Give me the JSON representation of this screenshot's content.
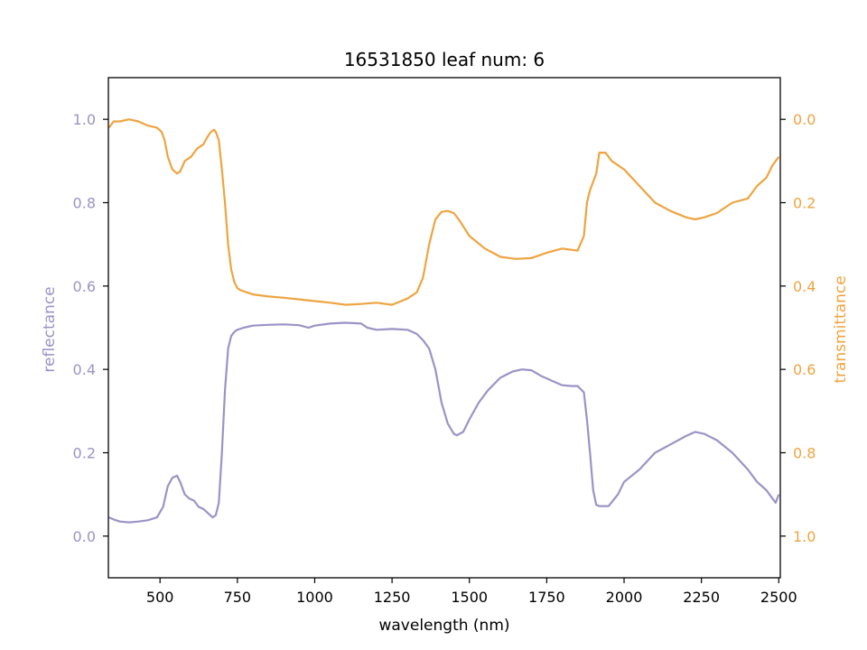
{
  "chart_data": {
    "type": "line",
    "title": "16531850 leaf num: 6",
    "xlabel": "wavelength (nm)",
    "ylabel_left": "reflectance",
    "ylabel_right": "transmittance",
    "xlim": [
      333,
      2505
    ],
    "ylim_left": [
      -0.1,
      1.1
    ],
    "ylim_right": [
      1.1,
      -0.1
    ],
    "right_axis_inverted": true,
    "grid": false,
    "x_ticks": [
      "500",
      "750",
      "1000",
      "1250",
      "1500",
      "1750",
      "2000",
      "2250",
      "2500"
    ],
    "y_ticks_left": [
      "0.0",
      "0.2",
      "0.4",
      "0.6",
      "0.8",
      "1.0"
    ],
    "y_ticks_right": [
      "0.0",
      "0.2",
      "0.4",
      "0.6",
      "0.8",
      "1.0"
    ],
    "colors": {
      "reflectance": "#9a93c6",
      "transmittance": "#eea440"
    },
    "series": [
      {
        "name": "reflectance",
        "axis": "left",
        "x": [
          335,
          350,
          370,
          400,
          430,
          460,
          490,
          510,
          525,
          540,
          555,
          565,
          580,
          595,
          610,
          625,
          640,
          655,
          670,
          680,
          690,
          700,
          710,
          720,
          730,
          740,
          750,
          770,
          800,
          850,
          900,
          950,
          980,
          1000,
          1050,
          1100,
          1150,
          1170,
          1200,
          1250,
          1300,
          1330,
          1350,
          1370,
          1390,
          1410,
          1430,
          1450,
          1460,
          1480,
          1500,
          1530,
          1560,
          1600,
          1640,
          1670,
          1700,
          1730,
          1760,
          1800,
          1830,
          1850,
          1870,
          1880,
          1890,
          1900,
          1910,
          1920,
          1950,
          1980,
          2000,
          2050,
          2100,
          2150,
          2200,
          2230,
          2260,
          2300,
          2350,
          2400,
          2430,
          2460,
          2480,
          2490,
          2500
        ],
        "y": [
          0.045,
          0.04,
          0.035,
          0.033,
          0.035,
          0.038,
          0.045,
          0.07,
          0.12,
          0.14,
          0.145,
          0.13,
          0.1,
          0.09,
          0.085,
          0.07,
          0.065,
          0.055,
          0.045,
          0.05,
          0.08,
          0.2,
          0.35,
          0.45,
          0.48,
          0.49,
          0.495,
          0.5,
          0.505,
          0.507,
          0.508,
          0.506,
          0.5,
          0.505,
          0.51,
          0.512,
          0.51,
          0.5,
          0.495,
          0.497,
          0.495,
          0.485,
          0.47,
          0.45,
          0.4,
          0.32,
          0.27,
          0.245,
          0.242,
          0.25,
          0.28,
          0.32,
          0.35,
          0.38,
          0.395,
          0.4,
          0.398,
          0.385,
          0.375,
          0.362,
          0.36,
          0.36,
          0.345,
          0.28,
          0.2,
          0.11,
          0.075,
          0.072,
          0.072,
          0.1,
          0.13,
          0.16,
          0.2,
          0.22,
          0.24,
          0.25,
          0.245,
          0.23,
          0.2,
          0.16,
          0.13,
          0.11,
          0.09,
          0.08,
          0.1
        ]
      },
      {
        "name": "transmittance",
        "axis": "right",
        "x": [
          335,
          350,
          370,
          400,
          430,
          460,
          490,
          505,
          515,
          525,
          540,
          555,
          565,
          580,
          600,
          620,
          640,
          655,
          665,
          675,
          680,
          690,
          700,
          710,
          720,
          730,
          740,
          750,
          760,
          780,
          800,
          850,
          900,
          950,
          1000,
          1050,
          1100,
          1150,
          1200,
          1250,
          1300,
          1330,
          1350,
          1370,
          1390,
          1410,
          1430,
          1450,
          1470,
          1500,
          1550,
          1600,
          1650,
          1700,
          1750,
          1800,
          1850,
          1870,
          1880,
          1890,
          1900,
          1910,
          1920,
          1940,
          1960,
          2000,
          2050,
          2100,
          2150,
          2200,
          2230,
          2260,
          2300,
          2350,
          2400,
          2430,
          2460,
          2480,
          2490,
          2500
        ],
        "y": [
          0.02,
          0.005,
          0.005,
          0.0,
          0.005,
          0.015,
          0.02,
          0.03,
          0.05,
          0.09,
          0.12,
          0.13,
          0.125,
          0.1,
          0.09,
          0.07,
          0.06,
          0.04,
          0.03,
          0.025,
          0.03,
          0.05,
          0.12,
          0.2,
          0.3,
          0.36,
          0.39,
          0.405,
          0.41,
          0.415,
          0.42,
          0.425,
          0.428,
          0.432,
          0.436,
          0.44,
          0.445,
          0.443,
          0.44,
          0.445,
          0.43,
          0.415,
          0.38,
          0.3,
          0.24,
          0.222,
          0.22,
          0.225,
          0.245,
          0.28,
          0.31,
          0.33,
          0.335,
          0.333,
          0.32,
          0.31,
          0.315,
          0.28,
          0.2,
          0.17,
          0.15,
          0.13,
          0.08,
          0.08,
          0.1,
          0.12,
          0.16,
          0.2,
          0.22,
          0.235,
          0.24,
          0.235,
          0.225,
          0.2,
          0.19,
          0.16,
          0.14,
          0.11,
          0.1,
          0.09
        ]
      }
    ]
  }
}
